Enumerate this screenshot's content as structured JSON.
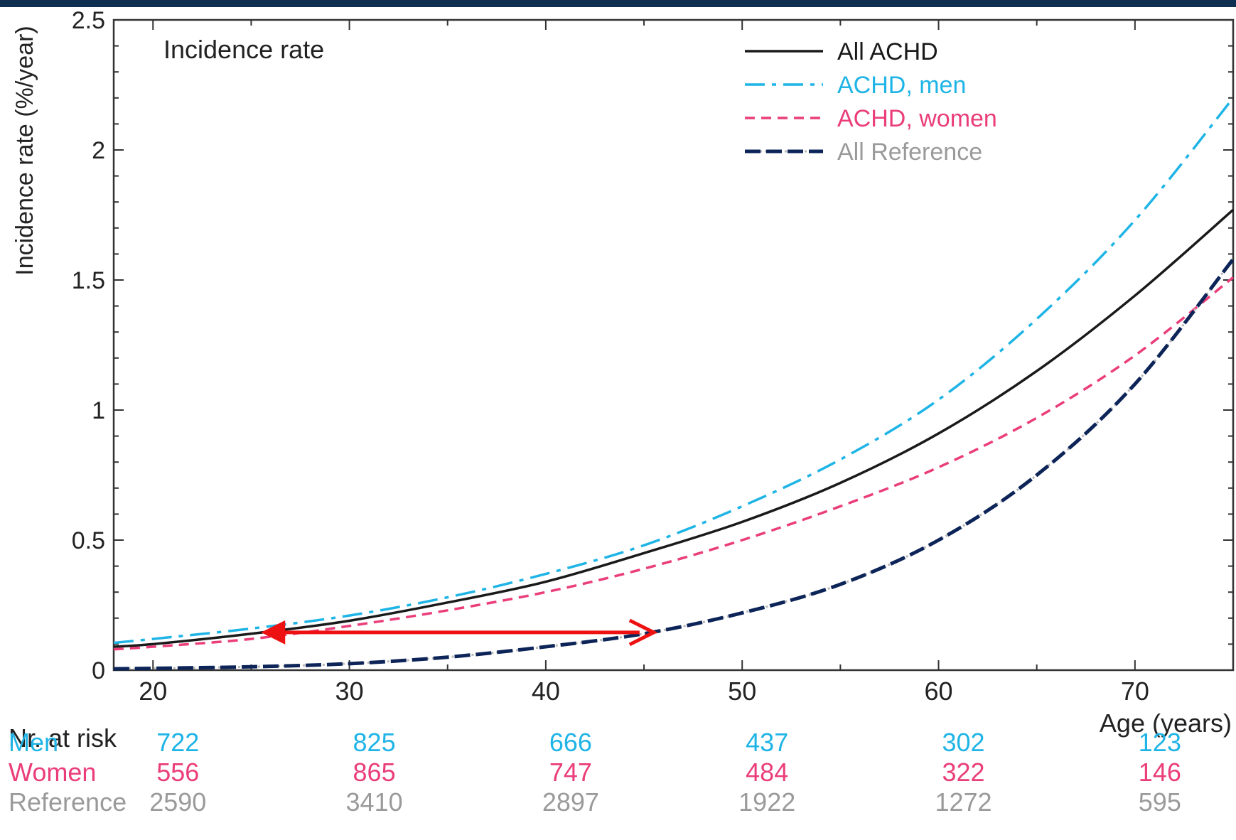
{
  "colors": {
    "all_achd": "#1a1a1a",
    "achd_men": "#1fb4e6",
    "achd_women": "#ea3d7a",
    "reference": "#0c2458",
    "reference_label": "#9a9a9a",
    "arrow": "#ee1111",
    "header_bar": "#0e2f4f"
  },
  "chart_data": {
    "type": "line",
    "annotation_title": "Incidence rate",
    "xlabel": "Age (years)",
    "ylabel": "Incidence rate (%/year)",
    "xlim": [
      18,
      75
    ],
    "ylim": [
      0,
      2.5
    ],
    "x_ticks": [
      20,
      30,
      40,
      50,
      60,
      70
    ],
    "y_ticks": [
      {
        "value": 0,
        "label": "0"
      },
      {
        "value": 0.5,
        "label": "0.5"
      },
      {
        "value": 1,
        "label": "1"
      },
      {
        "value": 1.5,
        "label": "1.5"
      },
      {
        "value": 2,
        "label": "2"
      },
      {
        "value": 2.5,
        "label": "2.5"
      }
    ],
    "legend_position": "top-right",
    "x": [
      18,
      20,
      25,
      30,
      35,
      40,
      45,
      50,
      55,
      60,
      65,
      70,
      75
    ],
    "series": [
      {
        "name": "All ACHD",
        "style": "solid",
        "values": [
          0.09,
          0.1,
          0.14,
          0.19,
          0.26,
          0.34,
          0.45,
          0.57,
          0.72,
          0.91,
          1.15,
          1.44,
          1.77
        ]
      },
      {
        "name": "ACHD, men",
        "style": "dashdot",
        "values": [
          0.105,
          0.12,
          0.16,
          0.21,
          0.28,
          0.37,
          0.48,
          0.63,
          0.81,
          1.04,
          1.35,
          1.73,
          2.2
        ]
      },
      {
        "name": "ACHD, women",
        "style": "dashed",
        "values": [
          0.08,
          0.09,
          0.12,
          0.17,
          0.23,
          0.3,
          0.39,
          0.5,
          0.63,
          0.78,
          0.97,
          1.21,
          1.51
        ]
      },
      {
        "name": "All Reference",
        "style": "bold-dashed",
        "values": [
          0.005,
          0.007,
          0.013,
          0.025,
          0.05,
          0.09,
          0.14,
          0.22,
          0.33,
          0.5,
          0.75,
          1.1,
          1.58
        ]
      }
    ],
    "arrow": {
      "x_start": 25.5,
      "x_end": 45.5,
      "y": 0.145
    },
    "risk_table": {
      "title": "Nr. at risk",
      "ages": [
        20,
        30,
        40,
        50,
        60,
        70
      ],
      "rows": [
        {
          "label": "Men",
          "values": [
            "722",
            "825",
            "666",
            "437",
            "302",
            "123"
          ]
        },
        {
          "label": "Women",
          "values": [
            "556",
            "865",
            "747",
            "484",
            "322",
            "146"
          ]
        },
        {
          "label": "Reference",
          "values": [
            "2590",
            "3410",
            "2897",
            "1922",
            "1272",
            "595"
          ]
        }
      ]
    }
  }
}
